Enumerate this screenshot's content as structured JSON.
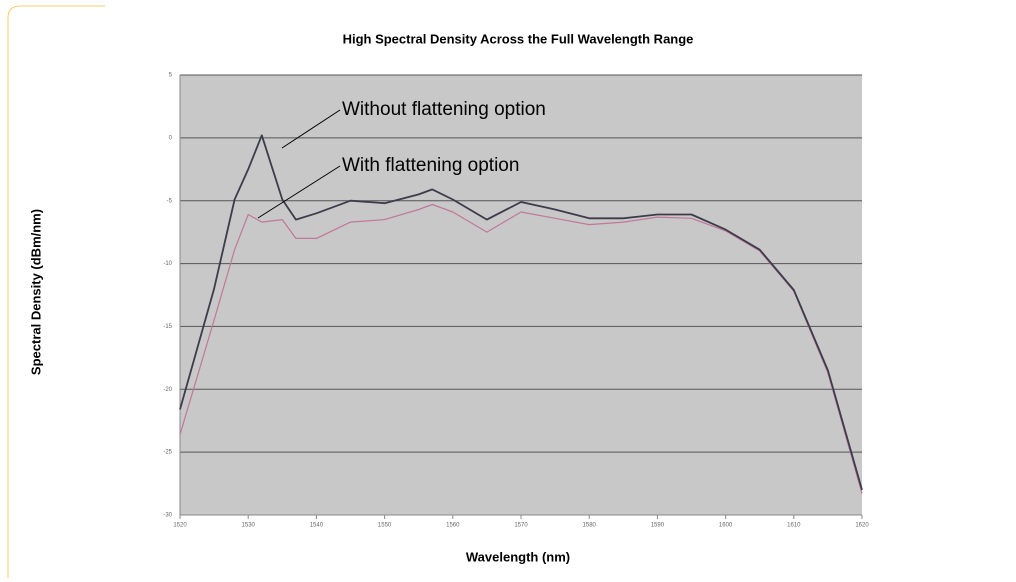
{
  "chart_data": {
    "type": "line",
    "title": "High Spectral Density Across the Full Wavelength Range",
    "xlabel": "Wavelength (nm)",
    "ylabel": "Spectral Density (dBm/nm)",
    "xlim": [
      1520,
      1620
    ],
    "ylim": [
      -30,
      5
    ],
    "xticks": [
      1520,
      1530,
      1540,
      1550,
      1560,
      1570,
      1580,
      1590,
      1600,
      1610,
      1620
    ],
    "yticks": [
      -30,
      -25,
      -20,
      -15,
      -10,
      -5,
      0,
      5
    ],
    "grid": true,
    "x": [
      1520,
      1525,
      1528,
      1530,
      1532,
      1535,
      1537,
      1540,
      1545,
      1550,
      1555,
      1557,
      1560,
      1565,
      1570,
      1575,
      1580,
      1585,
      1590,
      1595,
      1600,
      1605,
      1610,
      1615,
      1620
    ],
    "series": [
      {
        "name": "Without flattening option",
        "color": "#3c3c4c",
        "values": [
          -21.6,
          -12,
          -4.9,
          -2.5,
          0.2,
          -4.9,
          -6.5,
          -6,
          -5,
          -5.2,
          -4.5,
          -4.1,
          -4.9,
          -6.5,
          -5.1,
          -5.7,
          -6.4,
          -6.4,
          -6.1,
          -6.1,
          -7.3,
          -8.9,
          -12.1,
          -18.5,
          -28
        ]
      },
      {
        "name": "With flattening option",
        "color": "#c07898",
        "values": [
          -23.6,
          -14.5,
          -8.9,
          -6.1,
          -6.7,
          -6.5,
          -8,
          -8,
          -6.7,
          -6.5,
          -5.7,
          -5.3,
          -5.9,
          -7.5,
          -5.9,
          -6.4,
          -6.9,
          -6.7,
          -6.3,
          -6.4,
          -7.4,
          -9,
          -12.2,
          -18.7,
          -28.3
        ]
      }
    ]
  }
}
